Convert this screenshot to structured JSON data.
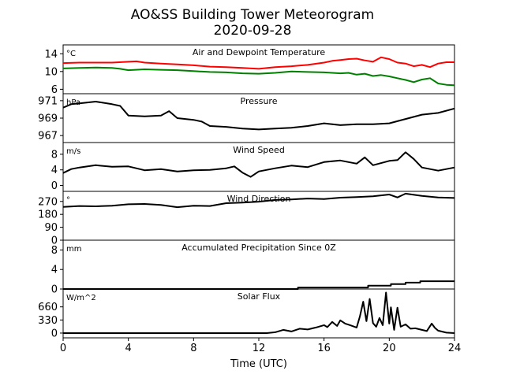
{
  "figure": {
    "title": "AO&SS Building Tower Meteorogram",
    "date": "2020-09-28",
    "xlabel": "Time (UTC)"
  },
  "chart_data": [
    {
      "type": "line",
      "title": "Air and Dewpoint Temperature",
      "unit": "°C",
      "xlim": [
        0,
        24
      ],
      "ylim": [
        5,
        16
      ],
      "yticks": [
        6,
        10,
        14
      ],
      "series": [
        {
          "color": "#ff0000",
          "x": [
            0,
            1,
            2,
            3,
            4,
            4.5,
            5,
            6,
            7,
            8,
            9,
            10,
            11,
            12,
            13,
            14,
            15,
            16,
            16.5,
            17,
            17.5,
            18,
            18.5,
            19,
            19.5,
            20,
            20.5,
            21,
            21.5,
            22,
            22.5,
            23,
            23.5,
            24
          ],
          "y": [
            11.9,
            12.0,
            12.0,
            12.0,
            12.2,
            12.3,
            12.0,
            11.8,
            11.6,
            11.4,
            11.1,
            11.0,
            10.8,
            10.6,
            11.0,
            11.2,
            11.5,
            12.0,
            12.4,
            12.6,
            12.8,
            12.9,
            12.5,
            12.2,
            13.2,
            12.8,
            12.0,
            11.8,
            11.2,
            11.5,
            11.0,
            11.8,
            12.1,
            12.1
          ]
        },
        {
          "color": "#008000",
          "x": [
            0,
            1,
            2,
            3,
            3.5,
            4,
            5,
            6,
            7,
            8,
            9,
            10,
            11,
            12,
            13,
            14,
            15,
            16,
            17,
            17.5,
            18,
            18.5,
            19,
            19.5,
            20,
            20.5,
            21,
            21.5,
            22,
            22.5,
            23,
            23.5,
            24
          ],
          "y": [
            10.7,
            10.8,
            10.9,
            10.8,
            10.6,
            10.3,
            10.5,
            10.4,
            10.3,
            10.1,
            9.9,
            9.8,
            9.6,
            9.5,
            9.7,
            10.0,
            9.9,
            9.8,
            9.6,
            9.7,
            9.3,
            9.5,
            9.0,
            9.2,
            8.9,
            8.5,
            8.1,
            7.6,
            8.2,
            8.5,
            7.3,
            7.0,
            6.9
          ]
        }
      ]
    },
    {
      "type": "line",
      "title": "Pressure",
      "unit": "hPa",
      "xlim": [
        0,
        24
      ],
      "ylim": [
        966.2,
        971.8
      ],
      "yticks": [
        967,
        969,
        971
      ],
      "series": [
        {
          "color": "#000000",
          "x": [
            0,
            0.5,
            1,
            2,
            3,
            3.5,
            4,
            5,
            6,
            6.5,
            7,
            8,
            8.5,
            9,
            10,
            11,
            12,
            13,
            14,
            15,
            16,
            17,
            18,
            19,
            20,
            21,
            22,
            23,
            24
          ],
          "y": [
            970.2,
            970.6,
            970.7,
            970.9,
            970.6,
            970.4,
            969.3,
            969.2,
            969.3,
            969.8,
            969.0,
            968.8,
            968.6,
            968.1,
            968.0,
            967.8,
            967.7,
            967.8,
            967.9,
            968.1,
            968.4,
            968.2,
            968.3,
            968.3,
            968.4,
            968.9,
            969.4,
            969.6,
            970.1
          ]
        }
      ]
    },
    {
      "type": "line",
      "title": "Wind Speed",
      "unit": "m/s",
      "xlim": [
        0,
        24
      ],
      "ylim": [
        -1.5,
        11
      ],
      "yticks": [
        0,
        4,
        8
      ],
      "series": [
        {
          "color": "#000000",
          "x": [
            0,
            0.5,
            1,
            2,
            3,
            4,
            5,
            6,
            7,
            8,
            9,
            10,
            10.5,
            11,
            11.5,
            12,
            13,
            14,
            15,
            16,
            17,
            18,
            18.5,
            19,
            20,
            20.5,
            21,
            21.5,
            22,
            23,
            24
          ],
          "y": [
            3.2,
            4.2,
            4.6,
            5.2,
            4.8,
            4.9,
            3.9,
            4.2,
            3.6,
            3.9,
            4.0,
            4.4,
            4.9,
            3.3,
            2.2,
            3.6,
            4.4,
            5.1,
            4.7,
            6.0,
            6.4,
            5.6,
            7.2,
            5.2,
            6.3,
            6.5,
            8.5,
            6.8,
            4.6,
            3.8,
            4.6
          ]
        }
      ]
    },
    {
      "type": "line",
      "title": "Wind Direction",
      "unit": "°",
      "xlim": [
        0,
        24
      ],
      "ylim": [
        0,
        340
      ],
      "yticks": [
        0,
        90,
        180,
        270
      ],
      "series": [
        {
          "color": "#000000",
          "x": [
            0,
            1,
            2,
            3,
            4,
            5,
            6,
            7,
            8,
            9,
            10,
            11,
            12,
            13,
            14,
            15,
            16,
            17,
            18,
            19,
            20,
            20.5,
            21,
            22,
            23,
            24
          ],
          "y": [
            232,
            238,
            236,
            240,
            250,
            252,
            245,
            230,
            240,
            238,
            258,
            262,
            268,
            280,
            284,
            290,
            286,
            296,
            300,
            306,
            318,
            298,
            324,
            308,
            298,
            294
          ]
        }
      ]
    },
    {
      "type": "area",
      "title": "Accumulated Precipitation Since 0Z",
      "unit": "mm",
      "xlim": [
        0,
        24
      ],
      "ylim": [
        0,
        10
      ],
      "yticks": [
        0,
        4,
        8
      ],
      "series": [
        {
          "color": "#000000",
          "x": [
            0,
            14.4,
            14.4,
            18.7,
            18.7,
            20.1,
            20.1,
            21.0,
            21.0,
            21.9,
            21.9,
            24
          ],
          "y": [
            0,
            0,
            0.3,
            0.3,
            0.7,
            0.7,
            1.0,
            1.0,
            1.3,
            1.3,
            1.6,
            1.6
          ]
        }
      ]
    },
    {
      "type": "line",
      "title": "Solar Flux",
      "unit": "W/m^2",
      "xlim": [
        0,
        24
      ],
      "ylim": [
        -120,
        1110
      ],
      "yticks": [
        0,
        330,
        660
      ],
      "series": [
        {
          "color": "#000000",
          "x": [
            0,
            12.5,
            13,
            13.5,
            14,
            14.5,
            15,
            15.5,
            16,
            16.2,
            16.5,
            16.8,
            17,
            17.3,
            17.6,
            18,
            18.2,
            18.4,
            18.6,
            18.8,
            19,
            19.2,
            19.4,
            19.6,
            19.8,
            20,
            20.1,
            20.3,
            20.5,
            20.7,
            21,
            21.3,
            21.6,
            22,
            22.3,
            22.6,
            22.8,
            23,
            23.5,
            24
          ],
          "y": [
            0,
            0,
            20,
            80,
            40,
            110,
            90,
            140,
            200,
            150,
            280,
            180,
            320,
            240,
            200,
            140,
            420,
            790,
            300,
            860,
            250,
            160,
            380,
            200,
            1020,
            240,
            650,
            80,
            640,
            160,
            220,
            110,
            120,
            80,
            50,
            240,
            130,
            60,
            10,
            0
          ]
        }
      ]
    }
  ]
}
